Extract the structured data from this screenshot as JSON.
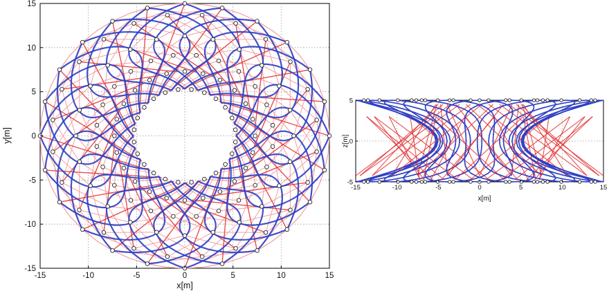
{
  "colors": {
    "cable_blue": "#2f3fc4",
    "strut_red": "#e23030",
    "faint_red": "#f2a0a0",
    "node_edge": "#222222",
    "grid": "#9a9a9a"
  },
  "chart_data": [
    {
      "type": "scatter",
      "view": "top",
      "xlabel": "x[m]",
      "ylabel": "y[m]",
      "xlim": [
        -15,
        15
      ],
      "ylim": [
        -15,
        15
      ],
      "xticks": [
        -15,
        -10,
        -5,
        0,
        5,
        10,
        15
      ],
      "yticks": [
        -15,
        -10,
        -5,
        0,
        5,
        10,
        15
      ],
      "grid": true,
      "structure": {
        "outer_radius": 15,
        "inner_radius": 5.3,
        "segments": 24,
        "node_rings": [
          15,
          13.8,
          11.3,
          9.2,
          7.3,
          5.3
        ]
      }
    },
    {
      "type": "scatter",
      "view": "side",
      "xlabel": "x[m]",
      "ylabel": "z[m]",
      "xlim": [
        -15,
        15
      ],
      "ylim": [
        -5,
        5
      ],
      "xticks": [
        -15,
        -10,
        -5,
        0,
        5,
        10,
        15
      ],
      "yticks": [
        -5,
        0,
        5
      ],
      "grid": true
    }
  ]
}
